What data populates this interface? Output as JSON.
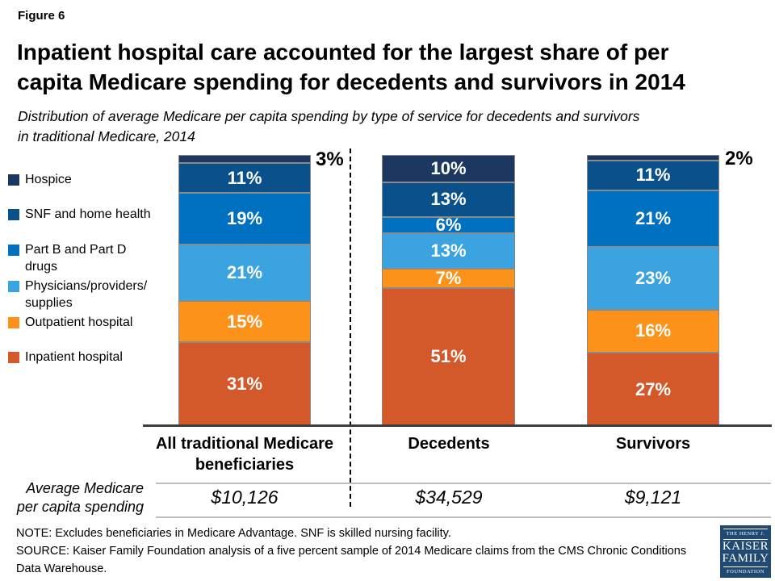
{
  "figure_label": "Figure 6",
  "title": "Inpatient hospital care accounted for the largest share of per\ncapita Medicare spending for decedents and survivors in 2014",
  "subtitle": "Distribution of average Medicare per capita spending by type of service for decedents and survivors\nin traditional Medicare, 2014",
  "chart_data": {
    "type": "bar",
    "stacked": true,
    "unit": "percent of per capita spending",
    "ylim": [
      0,
      100
    ],
    "grid": false,
    "legend_position": "left",
    "categories": [
      "All traditional Medicare\nbeneficiaries",
      "Decedents",
      "Survivors"
    ],
    "series": [
      {
        "name": "Hospice",
        "legend_label": "Hospice",
        "color": "#1c3860",
        "values": [
          3,
          10,
          2
        ]
      },
      {
        "name": "SNF and home health",
        "legend_label": "SNF and home health",
        "color": "#0a518c",
        "values": [
          11,
          13,
          11
        ]
      },
      {
        "name": "Part B and Part D drugs",
        "legend_label": "Part B and Part D\ndrugs",
        "color": "#0070c0",
        "values": [
          19,
          6,
          21
        ]
      },
      {
        "name": "Physicians/providers/supplies",
        "legend_label": "Physicians/providers/\nsupplies",
        "color": "#3aa3e0",
        "values": [
          21,
          13,
          23
        ]
      },
      {
        "name": "Outpatient hospital",
        "legend_label": "Outpatient hospital",
        "color": "#fc9219",
        "values": [
          15,
          7,
          16
        ]
      },
      {
        "name": "Inpatient hospital",
        "legend_label": "Inpatient hospital",
        "color": "#d4592a",
        "values": [
          31,
          51,
          27
        ]
      }
    ],
    "label_suffix": "%",
    "inside_label_min_value": 5,
    "outside_labels": [
      {
        "category_index": 0,
        "series": "Hospice",
        "text": "3%"
      },
      {
        "category_index": 2,
        "series": "Hospice",
        "text": "2%"
      }
    ]
  },
  "spending_row": {
    "label": "Average Medicare\nper capita spending",
    "values": [
      "$10,126",
      "$34,529",
      "$9,121"
    ]
  },
  "notes": {
    "note": "NOTE: Excludes beneficiaries in Medicare Advantage. SNF is skilled nursing facility.",
    "source": "SOURCE: Kaiser Family Foundation analysis of a five percent sample of 2014 Medicare claims from the CMS Chronic Conditions Data Warehouse."
  },
  "logo": {
    "line1": "THE HENRY J.",
    "line2": "KAISER",
    "line3": "FAMILY",
    "line4": "FOUNDATION",
    "bg_color": "#204a72"
  }
}
